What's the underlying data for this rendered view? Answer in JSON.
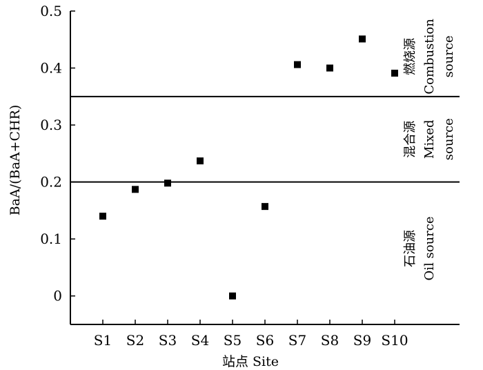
{
  "chart_data": {
    "type": "scatter",
    "xlabel": "站点 Site",
    "ylabel": "BaA/(BaA+CHR)",
    "categories": [
      "S1",
      "S2",
      "S3",
      "S4",
      "S5",
      "S6",
      "S7",
      "S8",
      "S9",
      "S10"
    ],
    "values": [
      0.14,
      0.187,
      0.198,
      0.237,
      0.0,
      0.157,
      0.406,
      0.4,
      0.451,
      0.391
    ],
    "ylim": [
      -0.05,
      0.5
    ],
    "yticks": [
      "0",
      "0.1",
      "0.2",
      "0.3",
      "0.4",
      "0.5"
    ],
    "thresholds": [
      0.2,
      0.35
    ],
    "regions": [
      {
        "label_zh": "燃烧源",
        "label_en": "Combustion source",
        "lines": [
          "燃烧源",
          "Combustion",
          "source"
        ]
      },
      {
        "label_zh": "混合源",
        "label_en": "Mixed source",
        "lines": [
          "混合源",
          "Mixed",
          "source"
        ]
      },
      {
        "label_zh": "石油源",
        "label_en": "Oil source",
        "lines": [
          "石油源",
          "Oil source"
        ]
      }
    ],
    "marker": "square",
    "marker_color": "#000000",
    "grid": false
  }
}
